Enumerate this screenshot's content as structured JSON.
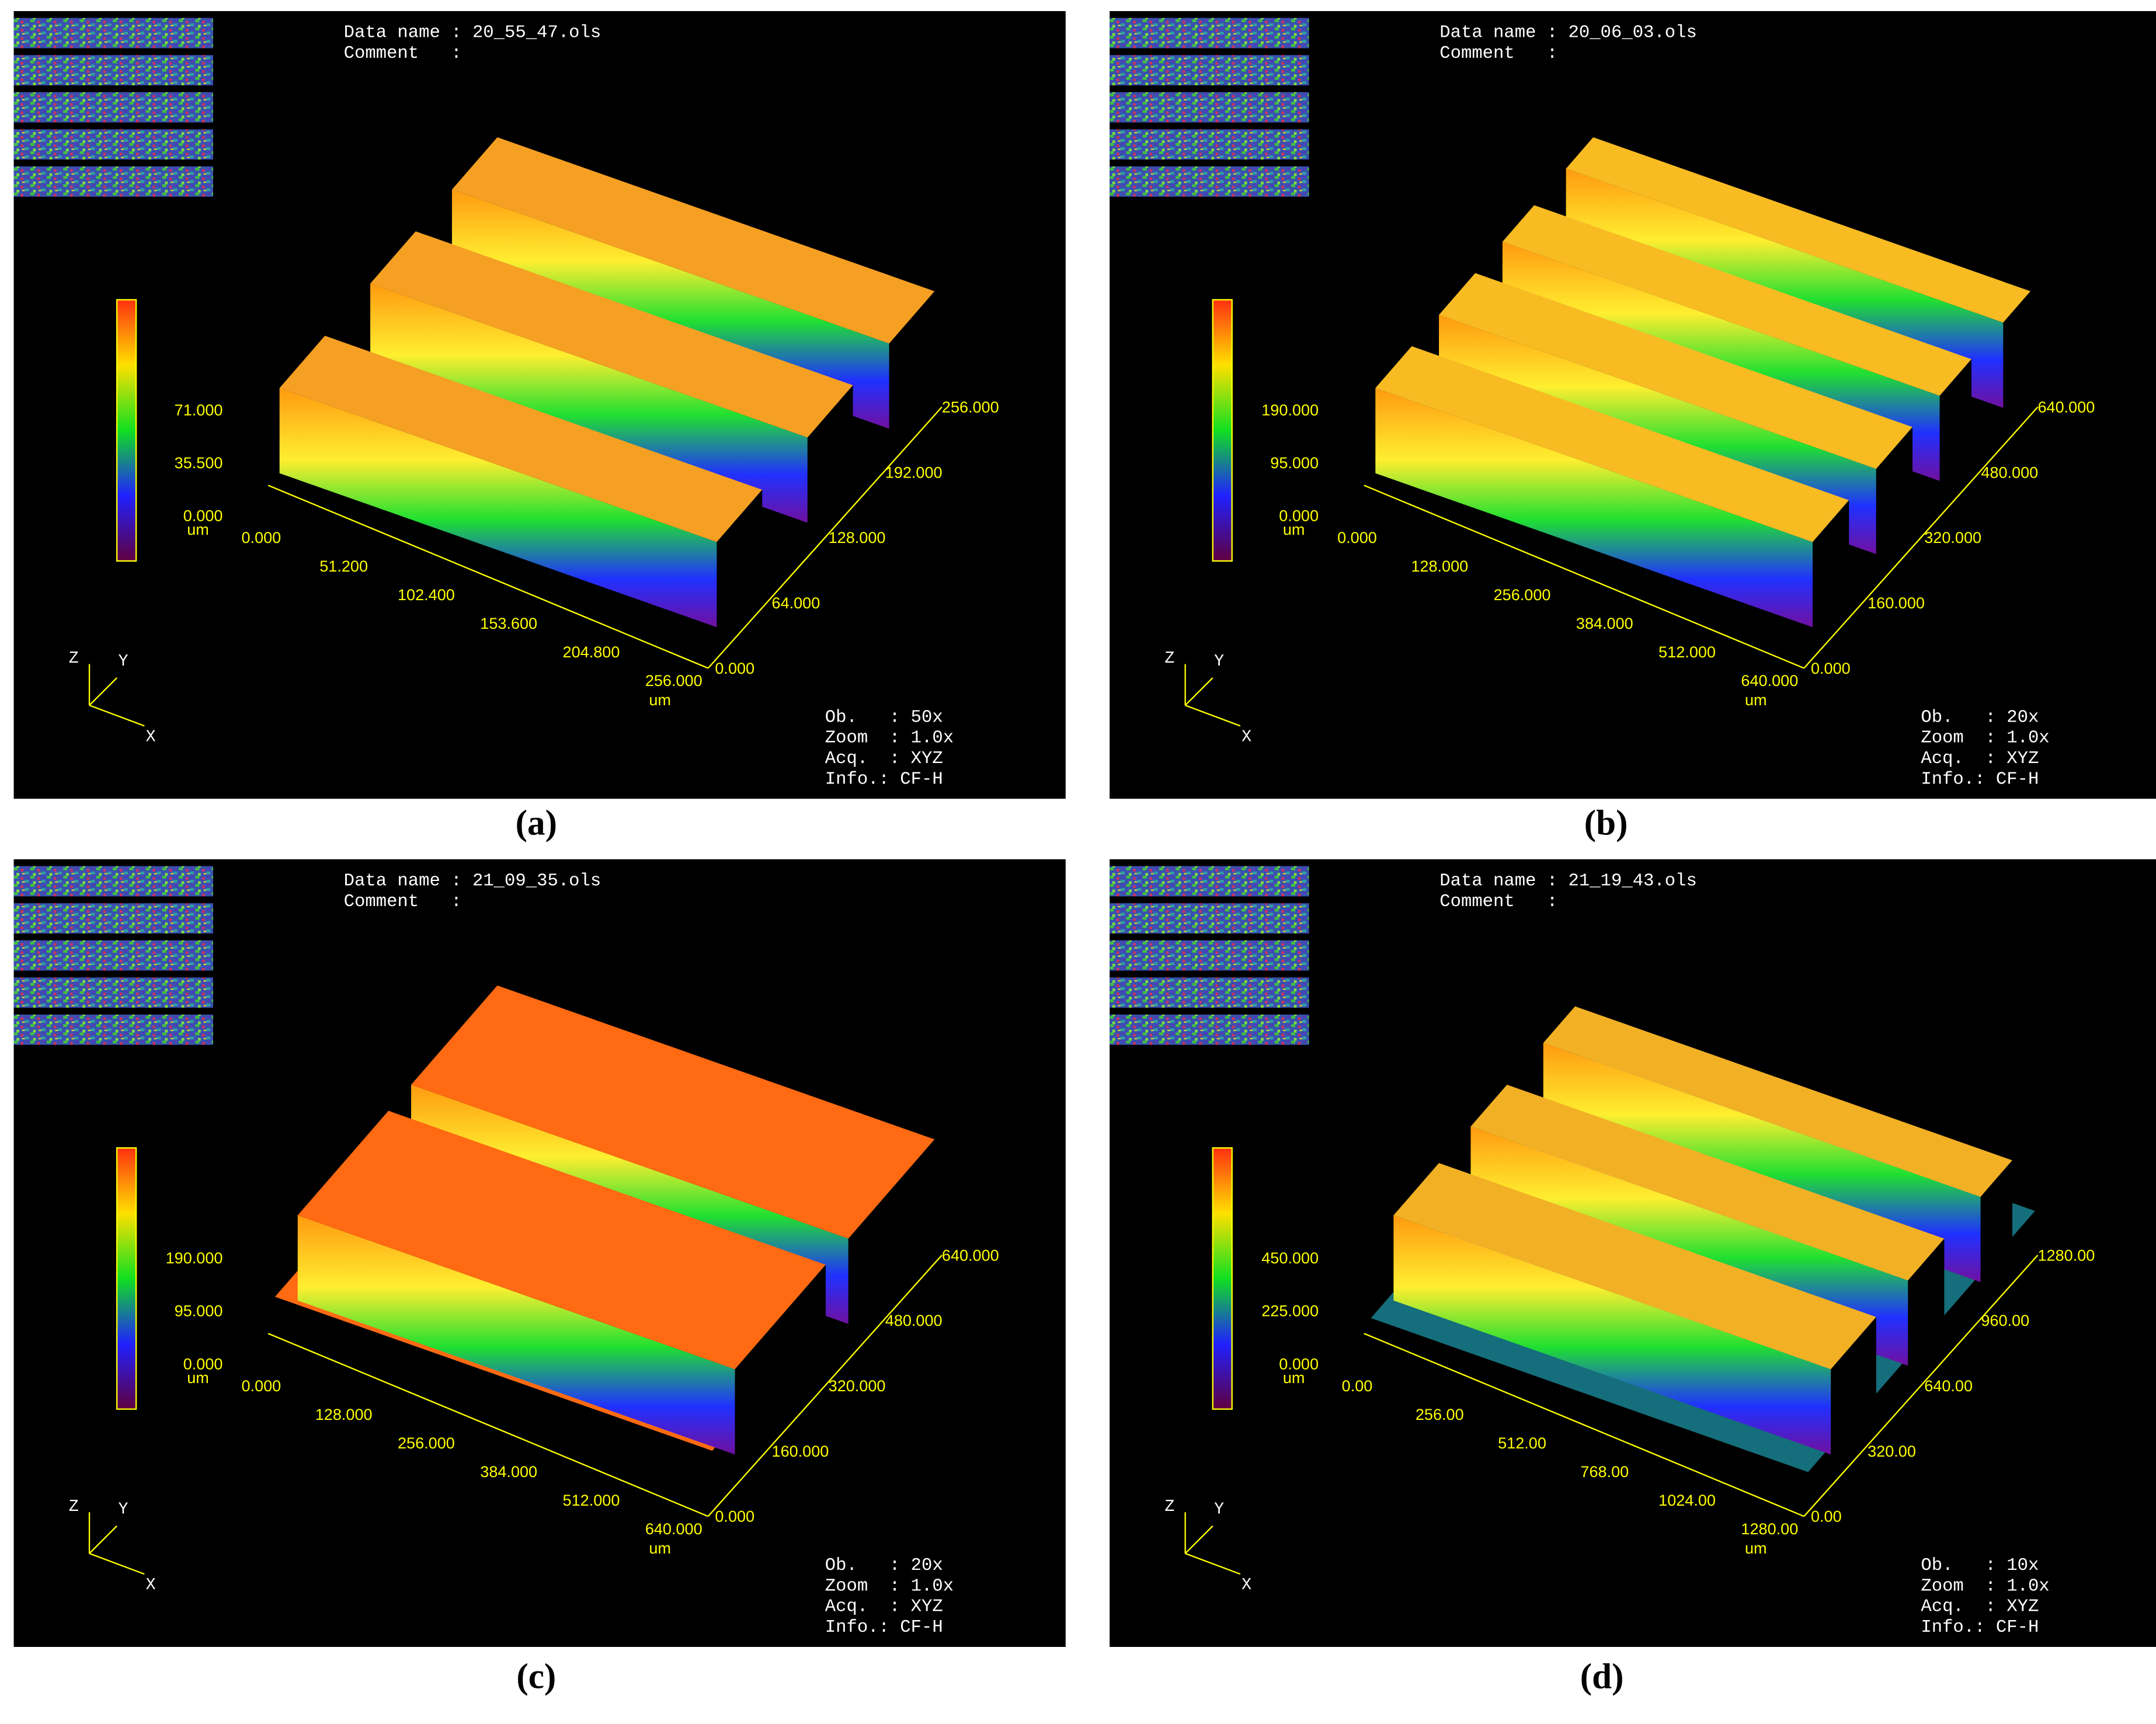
{
  "panels": [
    {
      "caption": "(a)",
      "data_name": "Data name : 20_55_47.ols",
      "comment": "Comment   :",
      "colorbar_ticks": [
        "71.000",
        "35.500",
        "0.000"
      ],
      "colorbar_unit": "um",
      "x_ticks": [
        "0.000",
        "51.200",
        "102.400",
        "153.600",
        "204.800",
        "256.000"
      ],
      "x_unit": "um",
      "y_ticks": [
        "0.000",
        "64.000",
        "128.000",
        "192.000",
        "256.000"
      ],
      "axes": [
        "Z",
        "Y",
        "X"
      ],
      "info": [
        "Ob.   : 50x",
        "Zoom  : 1.0x",
        "Acq.  : XYZ",
        "Info.: CF-H"
      ]
    },
    {
      "caption": "(b)",
      "data_name": "Data name : 20_06_03.ols",
      "comment": "Comment   :",
      "colorbar_ticks": [
        "190.000",
        "95.000",
        "0.000"
      ],
      "colorbar_unit": "um",
      "x_ticks": [
        "0.000",
        "128.000",
        "256.000",
        "384.000",
        "512.000",
        "640.000"
      ],
      "x_unit": "um",
      "y_ticks": [
        "0.000",
        "160.000",
        "320.000",
        "480.000",
        "640.000"
      ],
      "axes": [
        "Z",
        "Y",
        "X"
      ],
      "info": [
        "Ob.   : 20x",
        "Zoom  : 1.0x",
        "Acq.  : XYZ",
        "Info.: CF-H"
      ]
    },
    {
      "caption": "(c)",
      "data_name": "Data name : 21_09_35.ols",
      "comment": "Comment   :",
      "colorbar_ticks": [
        "190.000",
        "95.000",
        "0.000"
      ],
      "colorbar_unit": "um",
      "x_ticks": [
        "0.000",
        "128.000",
        "256.000",
        "384.000",
        "512.000",
        "640.000"
      ],
      "x_unit": "um",
      "y_ticks": [
        "0.000",
        "160.000",
        "320.000",
        "480.000",
        "640.000"
      ],
      "axes": [
        "Z",
        "Y",
        "X"
      ],
      "info": [
        "Ob.   : 20x",
        "Zoom  : 1.0x",
        "Acq.  : XYZ",
        "Info.: CF-H"
      ]
    },
    {
      "caption": "(d)",
      "data_name": "Data name : 21_19_43.ols",
      "comment": "Comment   :",
      "colorbar_ticks": [
        "450.000",
        "225.000",
        "0.000"
      ],
      "colorbar_unit": "um",
      "x_ticks": [
        "0.00",
        "256.00",
        "512.00",
        "768.00",
        "1024.00",
        "1280.00"
      ],
      "x_unit": "um",
      "y_ticks": [
        "0.00",
        "320.00",
        "640.00",
        "960.00",
        "1280.00"
      ],
      "axes": [
        "Z",
        "Y",
        "X"
      ],
      "info": [
        "Ob.   : 10x",
        "Zoom  : 1.0x",
        "Acq.  : XYZ",
        "Info.: CF-H"
      ]
    }
  ]
}
